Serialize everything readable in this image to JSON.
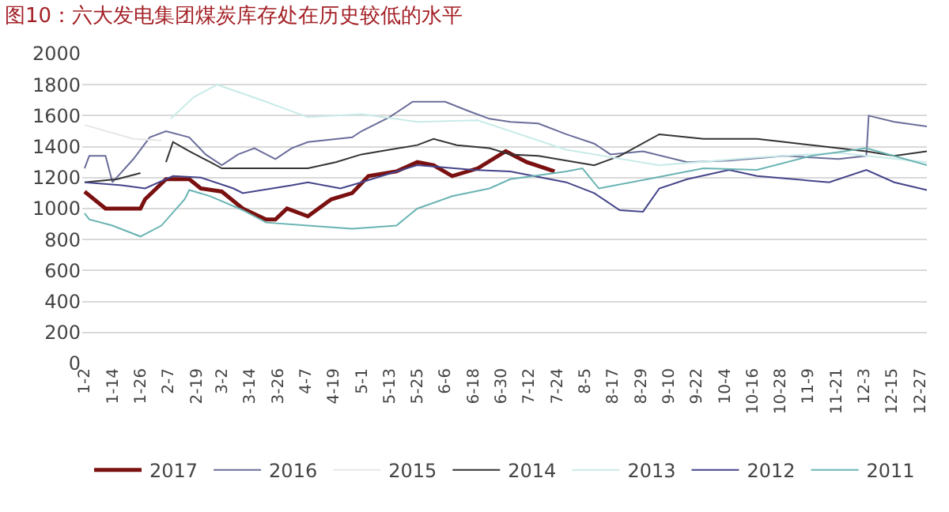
{
  "chart_data": {
    "type": "line",
    "title": "图10：六大发电集团煤炭库存处在历史较低的水平",
    "xlim": [
      "--01-01",
      "--12-30"
    ],
    "xticks": [
      {
        "value": "--01-02",
        "label": "1-2"
      },
      {
        "value": "--01-14",
        "label": "1-14"
      },
      {
        "value": "--01-26",
        "label": "1-26"
      },
      {
        "value": "--02-07",
        "label": "2-7"
      },
      {
        "value": "--02-19",
        "label": "2-19"
      },
      {
        "value": "--03-02",
        "label": "3-2"
      },
      {
        "value": "--03-14",
        "label": "3-14"
      },
      {
        "value": "--03-26",
        "label": "3-26"
      },
      {
        "value": "--04-07",
        "label": "4-7"
      },
      {
        "value": "--04-19",
        "label": "4-19"
      },
      {
        "value": "--05-01",
        "label": "5-1"
      },
      {
        "value": "--05-13",
        "label": "5-13"
      },
      {
        "value": "--05-25",
        "label": "5-25"
      },
      {
        "value": "--06-06",
        "label": "6-6"
      },
      {
        "value": "--06-18",
        "label": "6-18"
      },
      {
        "value": "--06-30",
        "label": "6-30"
      },
      {
        "value": "--07-12",
        "label": "7-12"
      },
      {
        "value": "--07-24",
        "label": "7-24"
      },
      {
        "value": "--08-05",
        "label": "8-5"
      },
      {
        "value": "--08-17",
        "label": "8-17"
      },
      {
        "value": "--08-29",
        "label": "8-29"
      },
      {
        "value": "--09-10",
        "label": "9-10"
      },
      {
        "value": "--09-22",
        "label": "9-22"
      },
      {
        "value": "--10-04",
        "label": "10-4"
      },
      {
        "value": "--10-16",
        "label": "10-16"
      },
      {
        "value": "--10-28",
        "label": "10-28"
      },
      {
        "value": "--11-09",
        "label": "11-9"
      },
      {
        "value": "--11-21",
        "label": "11-21"
      },
      {
        "value": "--12-03",
        "label": "12-3"
      },
      {
        "value": "--12-15",
        "label": "12-15"
      },
      {
        "value": "--12-27",
        "label": "12-27"
      }
    ],
    "ylim": [
      0,
      2000
    ],
    "yticks": [
      0,
      200,
      400,
      600,
      800,
      1000,
      1200,
      1400,
      1600,
      1800,
      2000
    ],
    "grid": "y",
    "legend": "bottom",
    "marker": "none",
    "line_style": "solid",
    "series": [
      {
        "name": "2017",
        "color": "#7a1010",
        "x": [
          "--01-02",
          "--01-11",
          "--01-26",
          "--01-28",
          "--02-06",
          "--02-16",
          "--02-21",
          "--03-02",
          "--03-11",
          "--03-21",
          "--03-25",
          "--03-30",
          "--04-08",
          "--04-18",
          "--04-27",
          "--05-04",
          "--05-16",
          "--05-25",
          "--06-01",
          "--06-09",
          "--06-20",
          "--07-02",
          "--07-11",
          "--07-23"
        ],
        "values": [
          1110,
          1000,
          1000,
          1060,
          1190,
          1190,
          1130,
          1110,
          1000,
          930,
          930,
          1000,
          950,
          1060,
          1100,
          1210,
          1240,
          1300,
          1280,
          1210,
          1260,
          1370,
          1300,
          1240
        ]
      },
      {
        "name": "2016",
        "color": "#6a6d99",
        "x": [
          "--01-02",
          "--01-04",
          "--01-11",
          "--01-14",
          "--01-23",
          "--01-30",
          "--02-06",
          "--02-16",
          "--02-23",
          "--03-02",
          "--03-09",
          "--03-16",
          "--03-25",
          "--04-01",
          "--04-08",
          "--04-27",
          "--05-01",
          "--05-13",
          "--05-23",
          "--06-06",
          "--06-16",
          "--06-25",
          "--07-04",
          "--07-16",
          "--07-28",
          "--08-09",
          "--08-16",
          "--08-30",
          "--09-18",
          "--10-06",
          "--10-30",
          "--11-22",
          "--12-04",
          "--12-05",
          "--12-16",
          "--12-30"
        ],
        "values": [
          1260,
          1340,
          1340,
          1170,
          1320,
          1460,
          1500,
          1460,
          1350,
          1280,
          1350,
          1390,
          1320,
          1390,
          1430,
          1460,
          1500,
          1590,
          1690,
          1690,
          1630,
          1580,
          1560,
          1550,
          1480,
          1420,
          1350,
          1370,
          1300,
          1310,
          1340,
          1320,
          1340,
          1600,
          1560,
          1530
        ]
      },
      {
        "name": "2015",
        "color": "#e6e6e6",
        "x": [
          "--01-02",
          "--01-23",
          "--02-04"
        ],
        "values": [
          1540,
          1450,
          1440
        ]
      },
      {
        "name": "2014",
        "color": "#333333",
        "x": [
          "--01-02",
          "--01-16",
          "--01-26",
          "--02-01",
          "--02-06",
          "--02-09",
          "--02-16",
          "--02-25",
          "--03-02",
          "--04-08",
          "--04-20",
          "--05-01",
          "--05-25",
          "--06-01",
          "--06-11",
          "--06-25",
          "--07-04",
          "--07-16",
          "--08-09",
          "--08-20",
          "--09-06",
          "--09-25",
          "--10-18",
          "--10-30",
          "--11-22",
          "--12-04",
          "--12-16",
          "--12-30"
        ],
        "values": [
          1170,
          1190,
          1230,
          null,
          1300,
          1430,
          1370,
          1300,
          1260,
          1260,
          1300,
          1350,
          1410,
          1450,
          1410,
          1390,
          1350,
          1340,
          1280,
          1340,
          1480,
          1450,
          1450,
          1430,
          1390,
          1370,
          1340,
          1370
        ]
      },
      {
        "name": "2013",
        "color": "#c8ebe8",
        "x": [
          "--02-08",
          "--02-18",
          "--02-28",
          "--03-21",
          "--04-08",
          "--05-01",
          "--05-25",
          "--06-20",
          "--07-28",
          "--09-06",
          "--10-18",
          "--11-22",
          "--12-30"
        ],
        "values": [
          1580,
          1720,
          1800,
          1690,
          1590,
          1610,
          1560,
          1570,
          1380,
          1280,
          1330,
          1360,
          1300
        ]
      },
      {
        "name": "2012",
        "color": "#44448a",
        "x": [
          "--01-02",
          "--01-18",
          "--01-28",
          "--02-09",
          "--02-21",
          "--03-07",
          "--03-11",
          "--04-01",
          "--04-08",
          "--04-22",
          "--05-01",
          "--05-16",
          "--05-25",
          "--06-18",
          "--07-04",
          "--07-28",
          "--08-09",
          "--08-20",
          "--08-30",
          "--09-06",
          "--09-18",
          "--10-06",
          "--10-18",
          "--11-18",
          "--12-04",
          "--12-16",
          "--12-30"
        ],
        "values": [
          1170,
          1150,
          1130,
          1210,
          1200,
          1130,
          1100,
          1150,
          1170,
          1130,
          1170,
          1240,
          1280,
          1250,
          1240,
          1170,
          1100,
          990,
          980,
          1130,
          1190,
          1250,
          1210,
          1170,
          1250,
          1170,
          1120
        ]
      },
      {
        "name": "2011",
        "color": "#6ab3b3",
        "x": [
          "--01-02",
          "--01-04",
          "--01-14",
          "--01-26",
          "--02-04",
          "--02-14",
          "--02-16",
          "--02-25",
          "--03-11",
          "--03-21",
          "--04-08",
          "--04-27",
          "--05-16",
          "--05-25",
          "--06-09",
          "--06-25",
          "--07-04",
          "--07-28",
          "--08-04",
          "--08-11",
          "--09-01",
          "--09-25",
          "--10-18",
          "--11-10",
          "--12-04",
          "--12-30"
        ],
        "values": [
          970,
          930,
          890,
          820,
          890,
          1060,
          1120,
          1080,
          990,
          910,
          890,
          870,
          890,
          1000,
          1080,
          1130,
          1190,
          1240,
          1260,
          1130,
          1190,
          1260,
          1250,
          1340,
          1390,
          1280
        ]
      }
    ]
  }
}
